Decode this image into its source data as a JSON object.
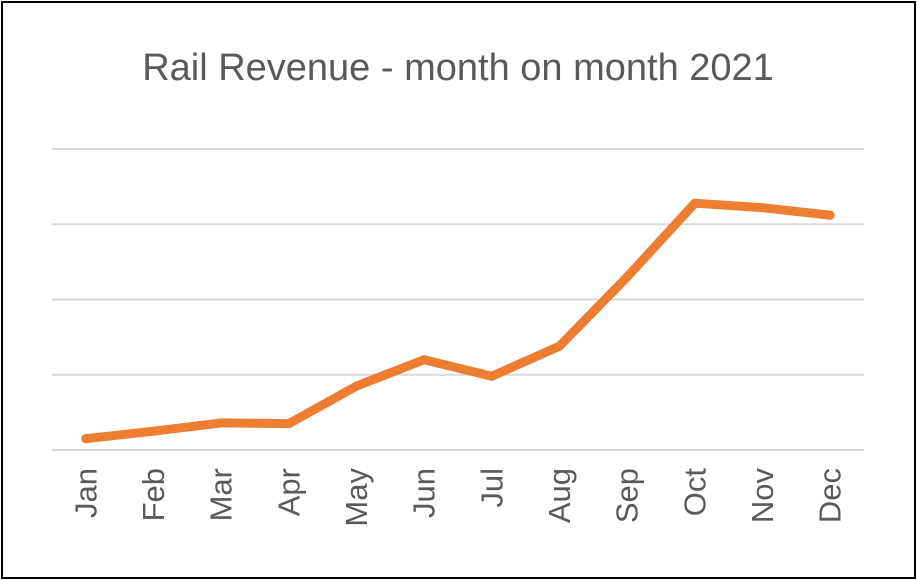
{
  "chart_data": {
    "type": "line",
    "title": "Rail Revenue - month on month 2021",
    "xlabel": "",
    "ylabel": "",
    "categories": [
      "Jan",
      "Feb",
      "Mar",
      "Apr",
      "May",
      "Jun",
      "Jul",
      "Aug",
      "Sep",
      "Oct",
      "Nov",
      "Dec"
    ],
    "series": [
      {
        "values": [
          0.15,
          0.25,
          0.36,
          0.35,
          0.85,
          1.2,
          0.98,
          1.38,
          2.3,
          3.28,
          3.22,
          3.12
        ],
        "color": "#ED7D31"
      }
    ],
    "ylim": [
      0,
      4
    ],
    "y_tick_labels_shown": false,
    "grid": true,
    "gridline_color": "#D9D9D9",
    "text_color": "#595959",
    "border_color": "#000000"
  }
}
